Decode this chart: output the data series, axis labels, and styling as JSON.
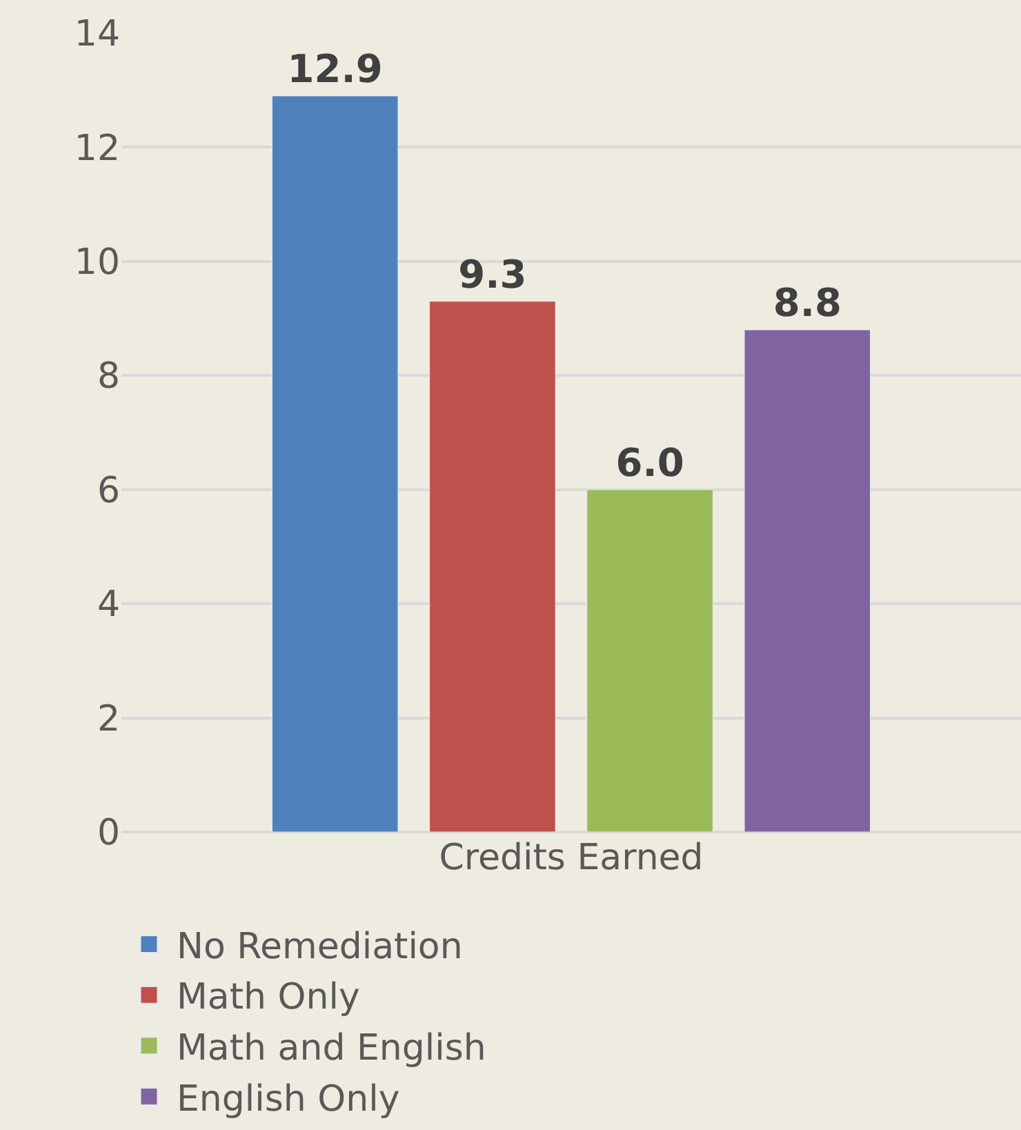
{
  "chart_data": {
    "type": "bar",
    "categories": [
      "Credits Earned"
    ],
    "series": [
      {
        "name": "No Remediation",
        "color": "#4f81bd",
        "values": [
          12.9
        ],
        "value_labels": [
          "12.9"
        ]
      },
      {
        "name": "Math Only",
        "color": "#c0504d",
        "values": [
          9.3
        ],
        "value_labels": [
          "9.3"
        ]
      },
      {
        "name": "Math and English",
        "color": "#9bbb59",
        "values": [
          6.0
        ],
        "value_labels": [
          "6.0"
        ]
      },
      {
        "name": "English Only",
        "color": "#8064a2",
        "values": [
          8.8
        ],
        "value_labels": [
          "8.8"
        ]
      }
    ],
    "ylim": [
      0,
      14
    ],
    "yticks": [
      0,
      2,
      4,
      6,
      8,
      10,
      12,
      14
    ],
    "grid": "y",
    "legend": "bottom"
  }
}
